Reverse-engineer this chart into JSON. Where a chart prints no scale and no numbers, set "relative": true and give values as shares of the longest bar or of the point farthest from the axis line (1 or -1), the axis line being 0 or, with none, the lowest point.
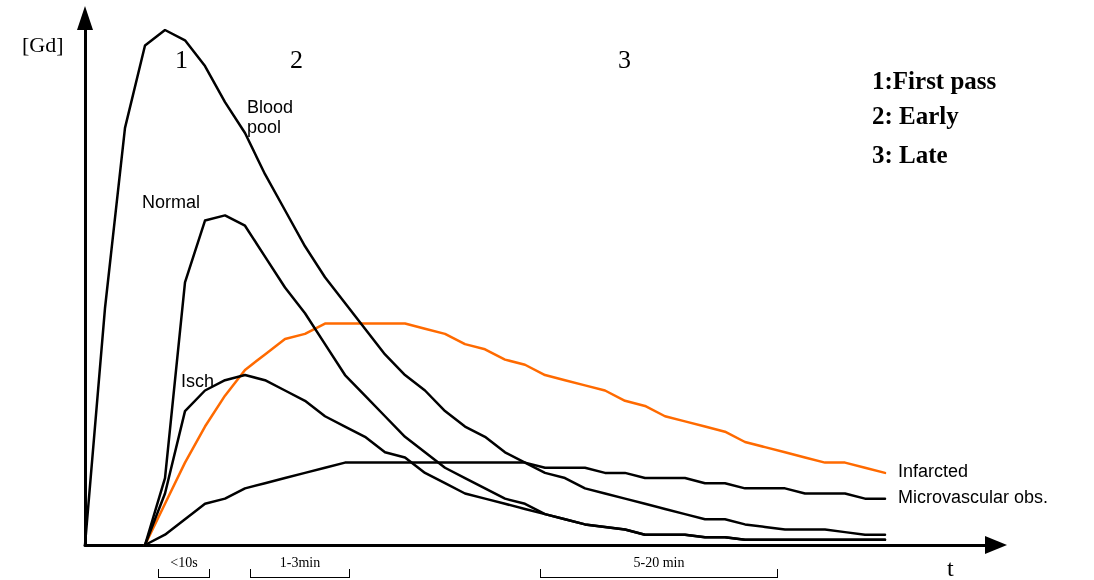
{
  "chart_data": {
    "type": "line",
    "relative": true,
    "xlabel": "t",
    "ylabel": "[Gd]",
    "marker": "none",
    "line_style": "solid",
    "grid": false,
    "legend": false,
    "categories": [
      null,
      null,
      null,
      null,
      null,
      null,
      null,
      null,
      null,
      null,
      null,
      null,
      null,
      null,
      null,
      null,
      null,
      null,
      null,
      null,
      null,
      null,
      null,
      null,
      null,
      null,
      null,
      null,
      null,
      null,
      null,
      null,
      null,
      null,
      null,
      null,
      null,
      null,
      null,
      null,
      null,
      null,
      null,
      null,
      null,
      null
    ],
    "series": [
      {
        "name": "Blood pool",
        "color": "#000000",
        "values": [
          0,
          0.46,
          0.81,
          0.97,
          1,
          0.98,
          0.93,
          0.86,
          0.8,
          0.72,
          0.65,
          0.58,
          0.52,
          0.47,
          0.42,
          0.37,
          0.33,
          0.3,
          0.26,
          0.23,
          0.21,
          0.18,
          0.16,
          0.14,
          0.13,
          0.11,
          0.1,
          0.09,
          0.08,
          0.07,
          0.06,
          0.05,
          0.05,
          0.04,
          0.035,
          0.03,
          0.03,
          0.03,
          0.025,
          0.02,
          0.02,
          null,
          null,
          null,
          null,
          null
        ]
      },
      {
        "name": "Normal",
        "color": "#000000",
        "values": [
          null,
          null,
          null,
          0,
          0.13,
          0.51,
          0.63,
          0.64,
          0.62,
          0.56,
          0.5,
          0.45,
          0.39,
          0.33,
          0.29,
          0.25,
          0.21,
          0.18,
          0.15,
          0.13,
          0.11,
          0.09,
          0.08,
          0.06,
          0.05,
          0.04,
          0.035,
          0.03,
          0.02,
          0.02,
          0.02,
          0.015,
          0.015,
          0.01,
          0.01,
          0.01,
          0.01,
          0.01,
          0.01,
          0.01,
          0.01,
          null,
          null,
          null,
          null,
          null
        ]
      },
      {
        "name": "Isch",
        "color": "#000000",
        "values": [
          null,
          null,
          null,
          0,
          0.1,
          0.26,
          0.3,
          0.32,
          0.33,
          0.32,
          0.3,
          0.28,
          0.25,
          0.23,
          0.21,
          0.18,
          0.17,
          0.14,
          0.12,
          0.1,
          0.09,
          0.08,
          0.07,
          0.06,
          0.05,
          0.04,
          0.035,
          0.03,
          0.02,
          0.02,
          0.02,
          0.015,
          0.015,
          0.01,
          0.01,
          0.01,
          0.01,
          0.01,
          0.01,
          0.01,
          0.01,
          null,
          null,
          null,
          null,
          null
        ]
      },
      {
        "name": "Infarcted",
        "color": "#ff6a00",
        "values": [
          null,
          null,
          null,
          0,
          0.08,
          0.16,
          0.23,
          0.29,
          0.34,
          0.37,
          0.4,
          0.41,
          0.43,
          0.43,
          0.43,
          0.43,
          0.43,
          0.42,
          0.41,
          0.39,
          0.38,
          0.36,
          0.35,
          0.33,
          0.32,
          0.31,
          0.3,
          0.28,
          0.27,
          0.25,
          0.24,
          0.23,
          0.22,
          0.2,
          0.19,
          0.18,
          0.17,
          0.16,
          0.16,
          0.15,
          0.14,
          null,
          null,
          null,
          null,
          null
        ]
      },
      {
        "name": "Microvascular obs.",
        "color": "#000000",
        "values": [
          null,
          null,
          null,
          0,
          0.02,
          0.05,
          0.08,
          0.09,
          0.11,
          0.12,
          0.13,
          0.14,
          0.15,
          0.16,
          0.16,
          0.16,
          0.16,
          0.16,
          0.16,
          0.16,
          0.16,
          0.16,
          0.16,
          0.15,
          0.15,
          0.15,
          0.14,
          0.14,
          0.13,
          0.13,
          0.13,
          0.12,
          0.12,
          0.11,
          0.11,
          0.11,
          0.1,
          0.1,
          0.1,
          0.09,
          0.09,
          null,
          null,
          null,
          null,
          null
        ]
      }
    ],
    "annotations": [
      "1",
      "2",
      "3",
      "1:First pass",
      "2: Early",
      "3: Late",
      "<10s",
      "1-3min",
      "5-20 min"
    ]
  }
}
